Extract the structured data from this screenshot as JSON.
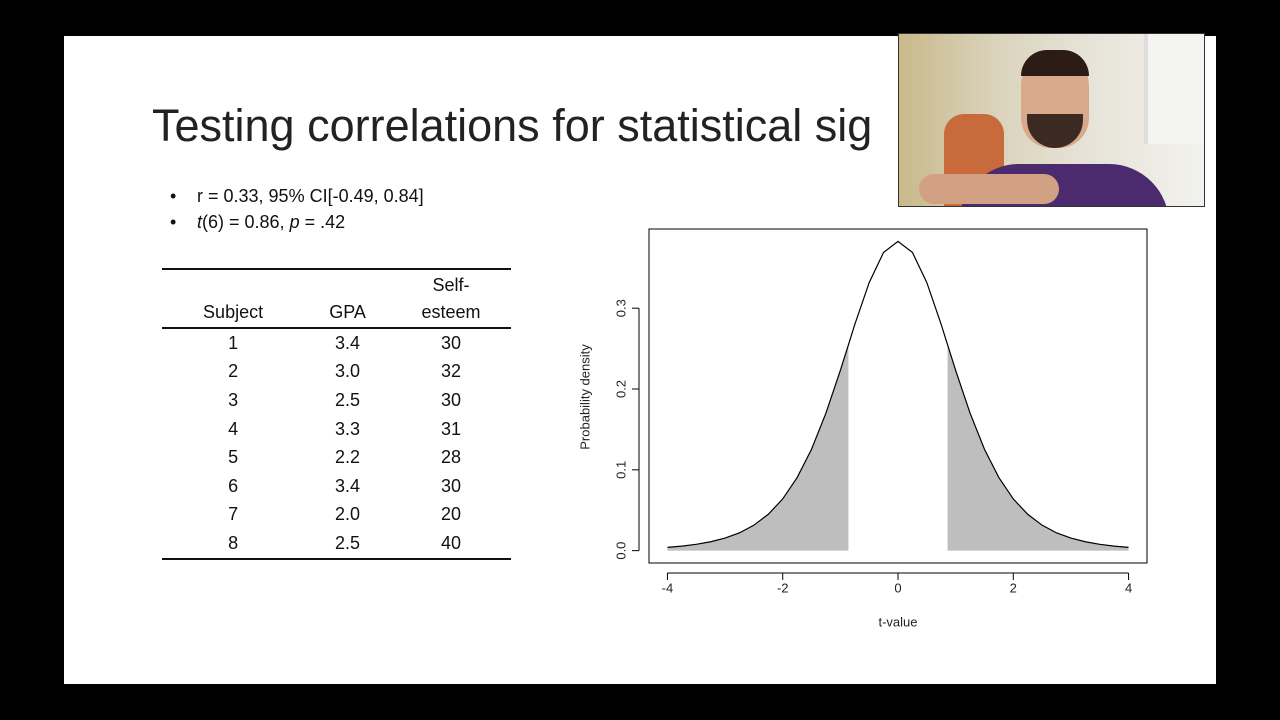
{
  "slide": {
    "title": "Testing correlations for statistical sig",
    "bullets": [
      [
        {
          "text": "r = 0.33, 95% CI[-0.49, 0.84]",
          "italic": false
        }
      ],
      [
        {
          "text": "t",
          "italic": true
        },
        {
          "text": "(6) = 0.86, ",
          "italic": false
        },
        {
          "text": "p",
          "italic": true
        },
        {
          "text": " = .42",
          "italic": false
        }
      ]
    ],
    "table": {
      "header": [
        "Subject",
        "GPA",
        "Self-esteem"
      ],
      "rows": [
        [
          "1",
          "3.4",
          "30"
        ],
        [
          "2",
          "3.0",
          "32"
        ],
        [
          "3",
          "2.5",
          "30"
        ],
        [
          "4",
          "3.3",
          "31"
        ],
        [
          "5",
          "2.2",
          "28"
        ],
        [
          "6",
          "3.4",
          "30"
        ],
        [
          "7",
          "2.0",
          "20"
        ],
        [
          "8",
          "2.5",
          "40"
        ]
      ]
    }
  },
  "chart_data": {
    "type": "line",
    "xlabel": "t-value",
    "ylabel": "Probability density",
    "x": [
      -4,
      -3.75,
      -3.5,
      -3.25,
      -3,
      -2.75,
      -2.5,
      -2.25,
      -2,
      -1.75,
      -1.5,
      -1.25,
      -1,
      -0.86,
      -0.75,
      -0.5,
      -0.25,
      0,
      0.25,
      0.5,
      0.75,
      0.86,
      1,
      1.25,
      1.5,
      1.75,
      2,
      2.25,
      2.5,
      2.75,
      3,
      3.25,
      3.5,
      3.75,
      4
    ],
    "series": [
      {
        "color": "#000000",
        "values": [
          0.004,
          0.0056,
          0.0078,
          0.011,
          0.0155,
          0.022,
          0.0315,
          0.045,
          0.064,
          0.0904,
          0.1255,
          0.1702,
          0.2231,
          0.2547,
          0.2797,
          0.3317,
          0.3691,
          0.3827,
          0.3691,
          0.3317,
          0.2797,
          0.2547,
          0.2231,
          0.1702,
          0.1255,
          0.0904,
          0.064,
          0.045,
          0.0315,
          0.022,
          0.0155,
          0.011,
          0.0078,
          0.0056,
          0.004
        ]
      }
    ],
    "shaded_regions": [
      [
        -4,
        -0.86
      ],
      [
        0.86,
        4
      ]
    ],
    "shade_color": "#bebebe",
    "xlim": [
      -4.32,
      4.32
    ],
    "ylim": [
      -0.0153,
      0.398
    ],
    "xticks": [
      -4,
      -2,
      0,
      2,
      4
    ],
    "yticks": [
      {
        "value": 0,
        "label": "0.0"
      },
      {
        "value": 0.1,
        "label": "0.1"
      },
      {
        "value": 0.2,
        "label": "0.2"
      },
      {
        "value": 0.3,
        "label": "0.3"
      }
    ]
  }
}
